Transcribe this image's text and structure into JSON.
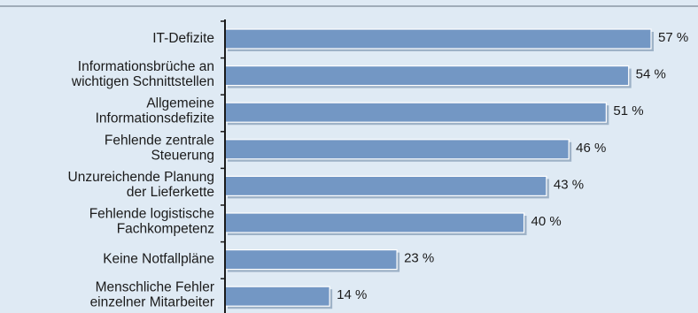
{
  "chart_data": {
    "type": "bar",
    "orientation": "horizontal",
    "categories": [
      [
        "IT-Defizite"
      ],
      [
        "Informationsbrüche an",
        "wichtigen Schnittstellen"
      ],
      [
        "Allgemeine",
        "Informationsdefizite"
      ],
      [
        "Fehlende zentrale",
        "Steuerung"
      ],
      [
        "Unzureichende Planung",
        "der Lieferkette"
      ],
      [
        "Fehlende logistische",
        "Fachkompetenz"
      ],
      [
        "Keine Notfallpläne"
      ],
      [
        "Menschliche Fehler",
        "einzelner Mitarbeiter"
      ]
    ],
    "values": [
      57,
      54,
      51,
      46,
      43,
      40,
      23,
      14
    ],
    "value_labels": [
      "57 %",
      "54 %",
      "51 %",
      "46 %",
      "43 %",
      "40 %",
      "23 %",
      "14 %"
    ],
    "unit": "%",
    "xlim": [
      0,
      60
    ],
    "grid": false,
    "colors": {
      "background": "#dfeaf4",
      "bar_fill": "#7397c4",
      "bar_stroke": "#ffffff",
      "bar_shadow": "#9eb2c7",
      "axis": "#1a1a1a",
      "top_rule": "#8c98a4"
    }
  }
}
